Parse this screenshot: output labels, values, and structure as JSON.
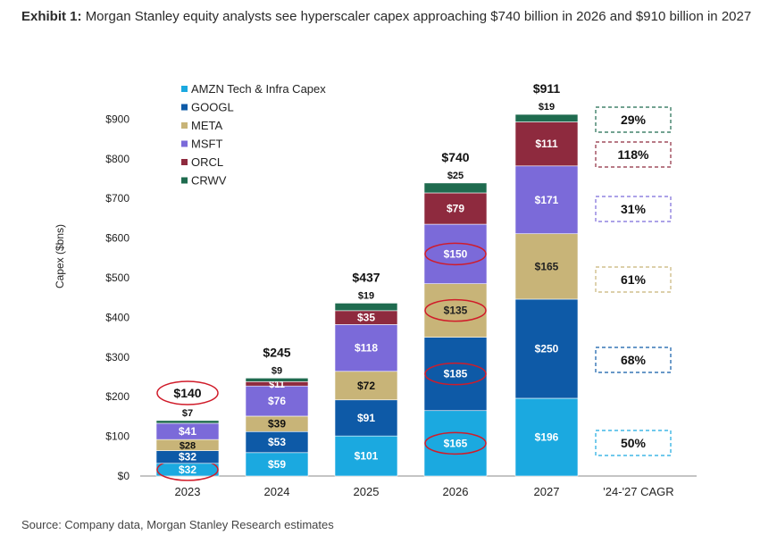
{
  "header": {
    "lead": "Exhibit 1:",
    "title": "Morgan Stanley equity analysts see hyperscaler capex approaching $740 billion in 2026 and $910 billion in 2027"
  },
  "source": "Source: Company data, Morgan Stanley Research estimates",
  "chart_data": {
    "type": "bar",
    "stacked": true,
    "title": "",
    "xlabel": "",
    "ylabel": "Capex ($bns)",
    "ylim": [
      0,
      900
    ],
    "yticks": [
      "$0",
      "$100",
      "$200",
      "$300",
      "$400",
      "$500",
      "$600",
      "$700",
      "$800",
      "$900"
    ],
    "categories": [
      "2023",
      "2024",
      "2025",
      "2026",
      "2027"
    ],
    "series": [
      {
        "name": "AMZN Tech & Infra Capex",
        "color": "#1ba9e0",
        "values": [
          32,
          59,
          101,
          165,
          196
        ],
        "labels": [
          "$32",
          "$59",
          "$101",
          "$165",
          "$196"
        ]
      },
      {
        "name": "GOOGL",
        "color": "#0e5aa7",
        "values": [
          32,
          53,
          91,
          185,
          250
        ],
        "labels": [
          "$32",
          "$53",
          "$91",
          "$185",
          "$250"
        ]
      },
      {
        "name": "META",
        "color": "#c8b478",
        "values": [
          28,
          39,
          72,
          135,
          165
        ],
        "labels": [
          "$28",
          "$39",
          "$72",
          "$135",
          "$165"
        ]
      },
      {
        "name": "MSFT",
        "color": "#7b6ad9",
        "values": [
          41,
          76,
          118,
          150,
          171
        ],
        "labels": [
          "$41",
          "$76",
          "$118",
          "$150",
          "$171"
        ]
      },
      {
        "name": "ORCL",
        "color": "#8e2a3e",
        "values": [
          0,
          11,
          35,
          79,
          111
        ],
        "labels": [
          "",
          "$11",
          "$35",
          "$79",
          "$111"
        ]
      },
      {
        "name": "CRWV",
        "color": "#1f6b4f",
        "values": [
          7,
          9,
          19,
          25,
          19
        ],
        "labels": [
          "$7",
          "$9",
          "$19",
          "$25",
          "$19"
        ]
      }
    ],
    "totals": [
      "$140",
      "$245",
      "$437",
      "$740",
      "$911"
    ],
    "cagr": {
      "label": "'24-'27 CAGR",
      "values": [
        "29%",
        "118%",
        "31%",
        "61%",
        "68%",
        "50%"
      ],
      "series_order": [
        "CRWV",
        "ORCL",
        "MSFT",
        "META",
        "GOOGL",
        "AMZN Tech & Infra Capex"
      ]
    },
    "legend_position": "top-left",
    "grid": false,
    "highlighted": [
      "2023 total $140",
      "2023 AMZN $32",
      "2026 MSFT $150",
      "2026 META $135",
      "2026 GOOGL $185",
      "2026 AMZN $165"
    ]
  }
}
